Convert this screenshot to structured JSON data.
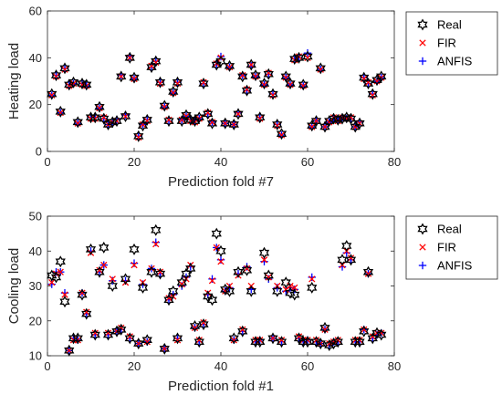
{
  "chart_data": [
    {
      "type": "scatter",
      "xlabel": "Prediction fold #7",
      "ylabel": "Heating load",
      "xlim": [
        0,
        80
      ],
      "ylim": [
        0,
        60
      ],
      "xticks": [
        "0",
        "20",
        "40",
        "60",
        "80"
      ],
      "yticks": [
        "0",
        "20",
        "40",
        "60"
      ],
      "legend": {
        "placement": "right-outside"
      },
      "series": [
        {
          "name": "Real",
          "marker": "hexagram",
          "color": "#000000"
        },
        {
          "name": "FIR",
          "marker": "x",
          "color": "#ff0000"
        },
        {
          "name": "ANFIS",
          "marker": "+",
          "color": "#0000ff"
        }
      ],
      "x": [
        1,
        2,
        3,
        4,
        5,
        6,
        7,
        8,
        9,
        10,
        11,
        12,
        13,
        14,
        15,
        16,
        17,
        18,
        19,
        20,
        21,
        22,
        23,
        24,
        25,
        26,
        27,
        28,
        29,
        30,
        31,
        32,
        33,
        34,
        35,
        36,
        37,
        38,
        39,
        40,
        41,
        42,
        43,
        44,
        45,
        46,
        47,
        48,
        49,
        50,
        51,
        52,
        53,
        54,
        55,
        56,
        57,
        58,
        59,
        60,
        61,
        62,
        63,
        64,
        65,
        66,
        67,
        68,
        69,
        70,
        71,
        72,
        73,
        74,
        75,
        76,
        77
      ],
      "real": [
        24.5,
        32.5,
        17,
        35.5,
        28.5,
        29.5,
        12.5,
        29,
        28.5,
        14.5,
        14.5,
        19,
        14,
        11.5,
        12.5,
        13,
        32,
        15,
        40,
        31.5,
        6.5,
        11,
        13.5,
        36,
        38.5,
        29.5,
        19.5,
        13,
        25.5,
        29.5,
        13,
        15.5,
        13.5,
        13,
        14.5,
        29,
        16,
        12,
        37,
        38.5,
        12,
        36.5,
        11.5,
        16,
        32,
        26,
        37,
        32.5,
        14.5,
        29,
        33,
        24.5,
        11.5,
        7.5,
        32,
        29,
        39.5,
        40,
        28.5,
        40.5,
        11,
        13,
        35.5,
        10.5,
        13,
        14,
        13.5,
        14,
        14.5,
        14,
        10.5,
        12,
        31.5,
        29,
        24.5,
        30.5,
        32
      ],
      "fir": [
        24,
        32,
        16.5,
        35,
        28,
        29,
        12,
        28.5,
        28,
        14,
        14,
        18.5,
        14.5,
        11.5,
        12.5,
        13,
        32,
        15,
        40,
        31,
        6,
        11.5,
        13,
        36.5,
        38,
        29,
        19,
        13.5,
        25,
        29,
        13.5,
        15,
        13,
        12.5,
        14,
        29.5,
        16.5,
        12.5,
        37.5,
        40,
        12,
        36,
        11.5,
        16,
        32.5,
        26.5,
        37,
        32,
        14,
        28.5,
        33.5,
        24,
        11,
        7,
        31.5,
        28.5,
        39,
        40.5,
        28,
        40,
        10.5,
        13,
        35,
        10.5,
        12.5,
        14.5,
        13,
        14.5,
        14,
        14.5,
        10.5,
        12,
        31,
        29.5,
        24,
        30,
        31.5
      ],
      "anfis": [
        24,
        32.5,
        16.5,
        35.5,
        28.5,
        29,
        12,
        29,
        28,
        14.5,
        14.5,
        18.5,
        14,
        11.5,
        12,
        13.5,
        32.5,
        15.5,
        40.5,
        31,
        6.5,
        11.5,
        13.5,
        36,
        38.5,
        29.5,
        19,
        13,
        25,
        29.5,
        13.5,
        15,
        13.5,
        13,
        14,
        29,
        16,
        12.5,
        37,
        40.5,
        12,
        36,
        11.5,
        16.5,
        32.5,
        26,
        36.5,
        32,
        14.5,
        28.5,
        33,
        24.5,
        11.5,
        7,
        31.5,
        28.5,
        39.5,
        40,
        28,
        42,
        10.5,
        13,
        35,
        10.5,
        12.5,
        14,
        13.5,
        14.5,
        14,
        14,
        10.5,
        12.5,
        31.5,
        29,
        24.5,
        30,
        31.5
      ]
    },
    {
      "type": "scatter",
      "xlabel": "Prediction fold #1",
      "ylabel": "Cooling load",
      "xlim": [
        0,
        80
      ],
      "ylim": [
        10,
        50
      ],
      "xticks": [
        "0",
        "20",
        "40",
        "60",
        "80"
      ],
      "yticks": [
        "10",
        "20",
        "30",
        "40",
        "50"
      ],
      "legend": {
        "placement": "right-outside"
      },
      "series": [
        {
          "name": "Real",
          "marker": "hexagram",
          "color": "#000000"
        },
        {
          "name": "FIR",
          "marker": "x",
          "color": "#ff0000"
        },
        {
          "name": "ANFIS",
          "marker": "+",
          "color": "#0000ff"
        }
      ],
      "x": [
        1,
        2,
        3,
        4,
        5,
        6,
        7,
        8,
        9,
        10,
        11,
        12,
        13,
        14,
        15,
        16,
        17,
        18,
        19,
        20,
        21,
        22,
        23,
        24,
        25,
        26,
        27,
        28,
        29,
        30,
        31,
        32,
        33,
        34,
        35,
        36,
        37,
        38,
        39,
        40,
        41,
        42,
        43,
        44,
        45,
        46,
        47,
        48,
        49,
        50,
        51,
        52,
        53,
        54,
        55,
        56,
        57,
        58,
        59,
        60,
        61,
        62,
        63,
        64,
        65,
        66,
        67,
        68,
        69,
        70,
        71,
        72,
        73,
        74,
        75,
        76,
        77
      ],
      "real": [
        33,
        32.5,
        37,
        25.5,
        11.5,
        15,
        15,
        27.5,
        22,
        40.5,
        16,
        34,
        41,
        16,
        30,
        17,
        17.5,
        32,
        15,
        40.5,
        13.5,
        29.5,
        14.5,
        34,
        46,
        33.5,
        12,
        26,
        28.5,
        15,
        31,
        33.5,
        35,
        18.5,
        14,
        19,
        27,
        26,
        45,
        40,
        29,
        28.5,
        15,
        34,
        17,
        34.5,
        28.5,
        14,
        14,
        39.5,
        33,
        15,
        28.5,
        14,
        31,
        28,
        27.5,
        15,
        14,
        14,
        29.5,
        14,
        13.5,
        18,
        13,
        13.5,
        14,
        37.5,
        41.5,
        37.5,
        14,
        14,
        17,
        34,
        15,
        16.5,
        16
      ],
      "fir": [
        31,
        33.5,
        34,
        27.5,
        11.5,
        14.5,
        14.5,
        28,
        22.5,
        39.5,
        16.5,
        34.5,
        36,
        16.5,
        32,
        17,
        18,
        31,
        15.5,
        36,
        13.5,
        31,
        14,
        35,
        42,
        34,
        12,
        26.5,
        27,
        14.5,
        30.5,
        32,
        36,
        18,
        14.5,
        19.5,
        28,
        31.5,
        41,
        37,
        28.5,
        30,
        14.5,
        33,
        17.5,
        35,
        30,
        14.5,
        14.5,
        37.5,
        32.5,
        15,
        30,
        14.5,
        29,
        30,
        29.5,
        15.5,
        14.5,
        14.5,
        32,
        14.5,
        13.5,
        17.5,
        13.5,
        14,
        14.5,
        36,
        40,
        38,
        14.5,
        14.5,
        17.5,
        33.5,
        15.5,
        16.5,
        16.5
      ],
      "anfis": [
        30.5,
        34,
        34,
        28,
        11.5,
        15,
        14.5,
        28,
        22,
        40,
        16,
        34,
        36,
        16,
        31.5,
        17,
        17.5,
        31.5,
        15,
        36.5,
        13.5,
        30.5,
        14,
        35,
        42.5,
        33.5,
        12,
        26,
        27.5,
        15,
        30,
        32.5,
        35.5,
        18,
        14,
        19,
        27.5,
        32,
        41,
        37.5,
        28.5,
        29.5,
        14.5,
        33.5,
        17,
        35.5,
        29,
        14,
        14.5,
        37,
        32,
        15,
        29.5,
        14,
        28.5,
        29.5,
        29,
        15,
        14,
        14.5,
        32.5,
        14,
        13.5,
        17.5,
        13,
        14,
        14,
        35.5,
        39.5,
        37.5,
        14,
        14,
        17.5,
        33.5,
        15,
        16,
        16.5
      ]
    }
  ]
}
